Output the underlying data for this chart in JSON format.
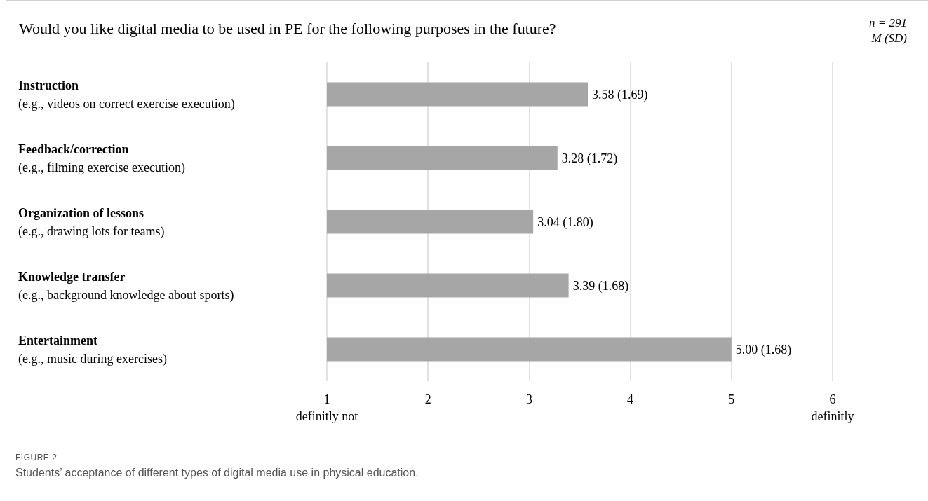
{
  "chart_data": {
    "type": "bar",
    "orientation": "horizontal",
    "title": "Would you like digital media to be used in PE for the following purposes in the future?",
    "categories": [
      "Instruction\n(e.g., videos on correct exercise execution)",
      "Feedback/correction\n(e.g., filming exercise execution)",
      "Organization of lessons\n(e.g., drawing lots for teams)",
      "Knowledge transfer\n(e.g., background knowledge about sports)",
      "Entertainment\n(e.g., music during exercises)"
    ],
    "values": [
      3.58,
      3.28,
      3.04,
      3.39,
      5.0
    ],
    "value_labels": [
      "3.58 (1.69)",
      "3.28 (1.72)",
      "3.04 (1.80)",
      "3.39 (1.68)",
      "5.00 (1.68)"
    ],
    "color": "#a6a6a6",
    "xlim": [
      1,
      6
    ],
    "xticks": [
      {
        "value": 1,
        "label": "1\ndefinitly not"
      },
      2,
      3,
      4,
      5,
      {
        "value": 6,
        "label": "6\ndefinitly"
      }
    ],
    "grid": "x",
    "annotations": [
      "n = 291",
      "M (SD)",
      "FIGURE 2",
      "Students’ acceptance of different types of digital media use in physical education."
    ]
  }
}
